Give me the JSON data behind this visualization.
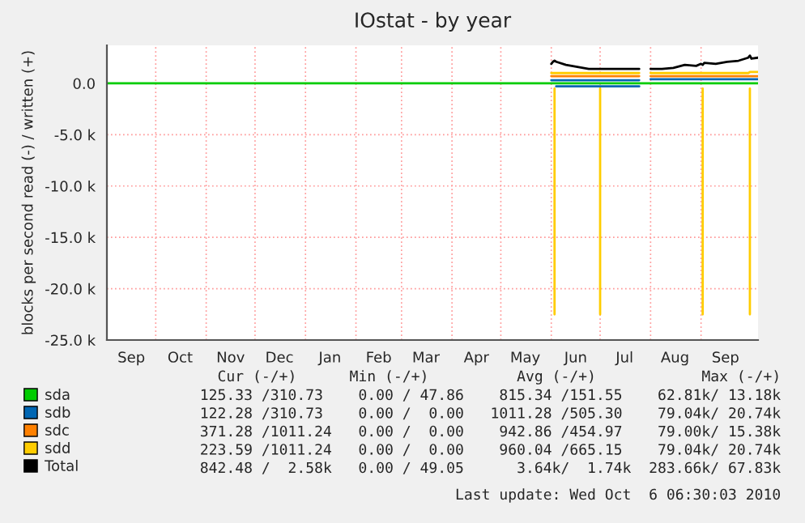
{
  "chart_data": {
    "type": "line",
    "title": "IOstat - by year",
    "ylabel": "blocks per second read (-) / written (+)",
    "xlim": [
      "2009-09-01",
      "2010-10-06"
    ],
    "xticks": [
      {
        "value": "2009-09-16",
        "label": "Sep"
      },
      {
        "value": "2009-10-16",
        "label": "Oct"
      },
      {
        "value": "2009-11-16",
        "label": "Nov"
      },
      {
        "value": "2009-12-16",
        "label": "Dec"
      },
      {
        "value": "2010-01-16",
        "label": "Jan"
      },
      {
        "value": "2010-02-15",
        "label": "Feb"
      },
      {
        "value": "2010-03-16",
        "label": "Mar"
      },
      {
        "value": "2010-04-16",
        "label": "Apr"
      },
      {
        "value": "2010-05-16",
        "label": "May"
      },
      {
        "value": "2010-06-16",
        "label": "Jun"
      },
      {
        "value": "2010-07-16",
        "label": "Jul"
      },
      {
        "value": "2010-08-16",
        "label": "Aug"
      },
      {
        "value": "2010-09-16",
        "label": "Sep"
      },
      {
        "value": "2009-10-01",
        "label": null
      },
      {
        "value": "2009-11-01",
        "label": null
      },
      {
        "value": "2009-12-01",
        "label": null
      },
      {
        "value": "2010-01-01",
        "label": null
      },
      {
        "value": "2010-02-01",
        "label": null
      },
      {
        "value": "2010-03-01",
        "label": null
      },
      {
        "value": "2010-04-01",
        "label": null
      },
      {
        "value": "2010-05-01",
        "label": null
      },
      {
        "value": "2010-06-01",
        "label": null
      },
      {
        "value": "2010-07-01",
        "label": null
      },
      {
        "value": "2010-08-01",
        "label": null
      },
      {
        "value": "2010-09-01",
        "label": null
      }
    ],
    "ylim": [
      -25000,
      3700
    ],
    "yticks": [
      {
        "value": 0,
        "label": "0.0"
      },
      {
        "value": -5000,
        "label": "-5.0 k"
      },
      {
        "value": -10000,
        "label": "-10.0 k"
      },
      {
        "value": -15000,
        "label": "-15.0 k"
      },
      {
        "value": -20000,
        "label": "-20.0 k"
      },
      {
        "value": -25000,
        "label": "-25.0 k"
      }
    ],
    "grid": true,
    "legend": "bottom left",
    "x": [
      "2010-06-01",
      "2010-06-02",
      "2010-06-03",
      "2010-06-04",
      "2010-06-10",
      "2010-06-17",
      "2010-06-24",
      "2010-06-30",
      "2010-07-01",
      "2010-07-02",
      "2010-07-09",
      "2010-07-16",
      "2010-07-25",
      "2010-07-28",
      "2010-08-01",
      "2010-08-08",
      "2010-08-15",
      "2010-08-22",
      "2010-08-29",
      "2010-09-01",
      "2010-09-02",
      "2010-09-03",
      "2010-09-10",
      "2010-09-17",
      "2010-09-24",
      "2010-09-30",
      "2010-10-01",
      "2010-10-02",
      "2010-10-06"
    ],
    "series": [
      {
        "name": "sda",
        "color": "#00cc00",
        "x": [
          "2009-09-01",
          "2010-10-06"
        ],
        "values": [
          0,
          0
        ]
      },
      {
        "name": "sdb",
        "color": "#0066b3",
        "values": [
          300,
          300,
          300,
          300,
          300,
          300,
          300,
          300,
          300,
          300,
          300,
          300,
          300,
          null,
          400,
          400,
          400,
          400,
          400,
          400,
          400,
          400,
          400,
          400,
          400,
          400,
          400,
          400,
          400
        ]
      },
      {
        "color": "#0066b3",
        "x": [
          "2010-06-04",
          "2010-07-25"
        ],
        "values": [
          -300,
          -300
        ]
      },
      {
        "name": "sdc",
        "color": "#ff8000",
        "values": [
          700,
          700,
          700,
          700,
          700,
          700,
          700,
          700,
          700,
          700,
          700,
          700,
          700,
          null,
          700,
          700,
          700,
          700,
          700,
          700,
          700,
          700,
          700,
          700,
          700,
          700,
          700,
          700,
          700
        ]
      },
      {
        "name": "sdd",
        "color": "#ffcc00",
        "values": [
          1000,
          1000,
          1000,
          1000,
          1000,
          1000,
          1000,
          1000,
          1000,
          1000,
          1000,
          1000,
          1000,
          null,
          1000,
          1000,
          1000,
          1000,
          1000,
          1000,
          1000,
          1000,
          1000,
          1000,
          1000,
          1000,
          1100,
          1100,
          1100
        ]
      },
      {
        "color": "#ffcc00",
        "x": [
          "2010-06-03",
          "2010-06-03",
          "2010-06-20",
          "2010-07-01",
          "2010-07-01",
          "2010-08-10",
          "2010-09-02",
          "2010-09-02",
          "2010-09-15",
          "2010-10-01",
          "2010-10-01"
        ],
        "values": [
          -500,
          -22500,
          null,
          -500,
          -22500,
          null,
          -500,
          -22500,
          null,
          -500,
          -22500
        ]
      },
      {
        "name": "Total",
        "color": "#000000",
        "values": [
          1900,
          2100,
          2200,
          2100,
          1800,
          1600,
          1400,
          1400,
          1400,
          1400,
          1400,
          1400,
          1400,
          null,
          1400,
          1400,
          1500,
          1800,
          1700,
          1900,
          1800,
          2000,
          1900,
          2100,
          2200,
          2500,
          2700,
          2400,
          2500
        ]
      }
    ],
    "annotations": [
      "Cur (-/+)      Min (-/+)          Avg (-/+)            Max (-/+)",
      "125.33 /310.73    0.00 / 47.86    815.34 /151.55    62.81k/ 13.18k",
      "122.28 /310.73    0.00 /  0.00   1011.28 /505.30    79.04k/ 20.74k",
      "371.28 /1011.24   0.00 /  0.00    942.86 /454.97    79.00k/ 15.38k",
      "223.59 /1011.24   0.00 /  0.00    960.04 /665.15    79.04k/ 20.74k",
      "842.48 /  2.58k   0.00 / 49.05      3.64k/  1.74k  283.66k/ 67.83k",
      "Last update: Wed Oct  6 06:30:03 2010"
    ]
  }
}
